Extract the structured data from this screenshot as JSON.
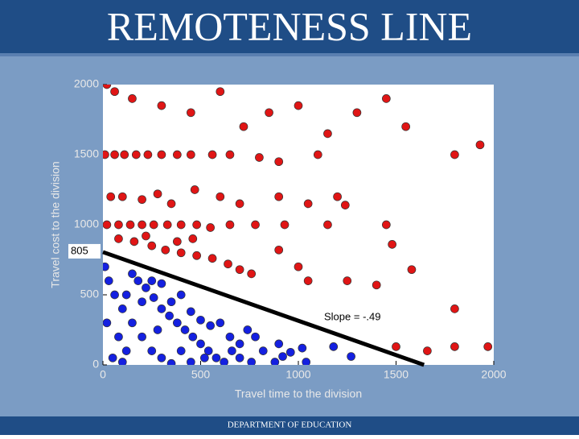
{
  "title": "REMOTENESS LINE",
  "footer": "DEPARTMENT OF EDUCATION",
  "chart_data": {
    "type": "scatter",
    "xlabel": "Travel time to the division",
    "ylabel": "Travel cost to the division",
    "xlim": [
      0,
      2000
    ],
    "ylim": [
      0,
      2000
    ],
    "xticks": [
      0,
      500,
      1000,
      1500,
      2000
    ],
    "yticks": [
      0,
      500,
      1000,
      1500,
      2000
    ],
    "series": [
      {
        "color": "#e01515",
        "x": [
          20,
          60,
          150,
          300,
          450,
          600,
          720,
          850,
          1000,
          1150,
          1300,
          1450,
          1550,
          1800,
          1930,
          10,
          60,
          110,
          170,
          230,
          300,
          380,
          450,
          560,
          650,
          800,
          900,
          1100,
          40,
          100,
          200,
          280,
          350,
          470,
          600,
          700,
          900,
          1050,
          1200,
          1240,
          20,
          80,
          140,
          200,
          260,
          330,
          400,
          480,
          550,
          650,
          780,
          930,
          1450,
          80,
          160,
          250,
          320,
          400,
          480,
          560,
          640,
          700,
          760,
          900,
          1000,
          1050,
          1250,
          1400,
          1480,
          1580,
          1660,
          1800,
          1800,
          1970,
          1500,
          1150,
          460,
          380,
          220
        ],
        "y": [
          2000,
          1950,
          1900,
          1850,
          1800,
          1950,
          1700,
          1800,
          1850,
          1650,
          1800,
          1900,
          1700,
          1500,
          1570,
          1500,
          1500,
          1500,
          1500,
          1500,
          1500,
          1500,
          1500,
          1500,
          1500,
          1480,
          1450,
          1500,
          1200,
          1200,
          1180,
          1220,
          1150,
          1250,
          1200,
          1150,
          1200,
          1150,
          1200,
          1140,
          1000,
          1000,
          1000,
          1000,
          1000,
          1000,
          1000,
          1000,
          980,
          1000,
          1000,
          1000,
          1000,
          900,
          880,
          850,
          820,
          800,
          780,
          760,
          720,
          680,
          650,
          820,
          700,
          600,
          600,
          570,
          860,
          680,
          100,
          400,
          130,
          130,
          130,
          1000,
          900,
          880,
          920
        ]
      },
      {
        "color": "#1420e0",
        "x": [
          10,
          30,
          60,
          100,
          150,
          200,
          250,
          300,
          350,
          20,
          80,
          120,
          180,
          220,
          260,
          300,
          340,
          380,
          420,
          460,
          500,
          540,
          580,
          620,
          660,
          700,
          740,
          780,
          820,
          900,
          920,
          1020,
          1040,
          1180,
          1270,
          400,
          350,
          450,
          500,
          550,
          600,
          650,
          50,
          100,
          150,
          250,
          300,
          120,
          200,
          280,
          400,
          450,
          520,
          700,
          760,
          880,
          960
        ],
        "y": [
          700,
          600,
          500,
          400,
          300,
          200,
          100,
          50,
          10,
          300,
          200,
          100,
          600,
          550,
          480,
          400,
          350,
          300,
          250,
          200,
          150,
          100,
          50,
          20,
          100,
          150,
          250,
          200,
          100,
          150,
          60,
          120,
          20,
          130,
          60,
          500,
          450,
          380,
          320,
          280,
          300,
          200,
          50,
          20,
          650,
          600,
          580,
          500,
          450,
          250,
          100,
          20,
          50,
          50,
          20,
          20,
          90
        ]
      }
    ],
    "fit_line": {
      "color": "#000000",
      "x": [
        0,
        1643
      ],
      "y": [
        805,
        0
      ]
    },
    "annotations": [
      "805",
      "Slope = -.49"
    ]
  }
}
